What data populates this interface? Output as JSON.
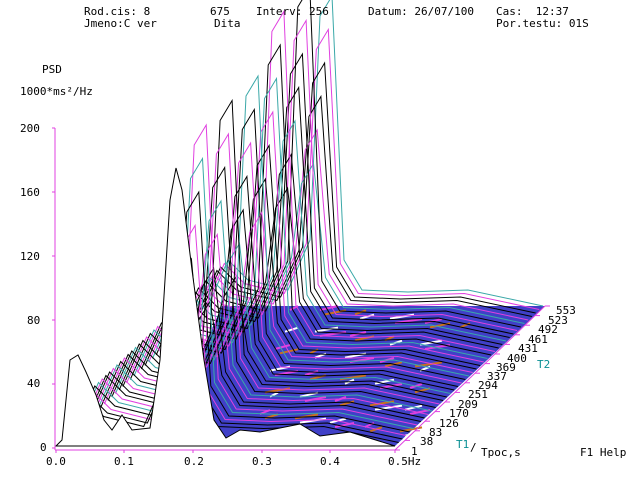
{
  "header": {
    "rod_cis": "Rod.cis: 8",
    "rod_cis_tail": "675",
    "interv": "Interv: 256",
    "datum": "Datum: 26/07/100",
    "cas": "Cas:  12:37",
    "jmeno": "Jmeno:C ver",
    "jmeno_tail": "Dita",
    "por_testu": "Por.testu: 01S"
  },
  "axes": {
    "y_title": "PSD",
    "y_unit": "1000*ms²/Hz",
    "y_ticks": [
      "200",
      "160",
      "120",
      "80",
      "40",
      "0"
    ],
    "x_ticks": [
      "0.0",
      "0.1",
      "0.2",
      "0.3",
      "0.4",
      "0.5Hz"
    ],
    "t_ticks": [
      "553",
      "523",
      "492",
      "461",
      "431",
      "400",
      "369",
      "337",
      "294",
      "251",
      "209",
      "170",
      "126",
      "83",
      "38",
      "1"
    ],
    "t_axis_label": "Tpoc,s",
    "t1_label": "T1",
    "t2_label": "T2"
  },
  "footer": {
    "help": "F1 Help"
  },
  "colors": {
    "axis": "#e040e0",
    "floor": "#4040c8",
    "accent": "#0a8f93",
    "orange": "#c87020",
    "peak": "#000000",
    "peak_edge": "#3aa8a8"
  }
}
